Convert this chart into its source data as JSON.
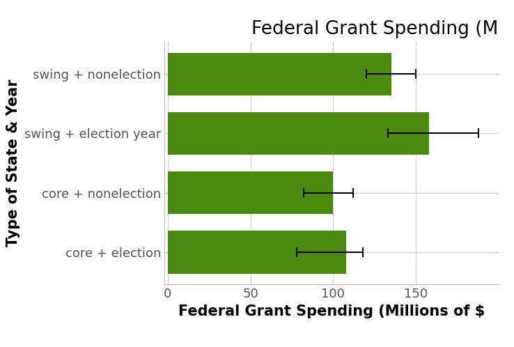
{
  "categories": [
    "core + election",
    "core + nonelection",
    "swing + election year",
    "swing + nonelection"
  ],
  "bar_values": [
    108,
    100,
    158,
    135
  ],
  "error_centers": [
    90,
    90,
    143,
    130
  ],
  "error_lower_delta": [
    12,
    8,
    10,
    10
  ],
  "error_upper_delta": [
    28,
    22,
    45,
    20
  ],
  "bar_color": "#4a8b0f",
  "error_color": "#000000",
  "title": "Federal Grant Spending (M",
  "xlabel": "Federal Grant Spending (Millions of $",
  "ylabel": "Type of State & Year",
  "xlim": [
    -2,
    200
  ],
  "xticks": [
    0,
    50,
    100,
    150
  ],
  "background_color": "#ffffff",
  "grid_color": "#cccccc",
  "title_fontsize": 19,
  "label_fontsize": 15,
  "tick_fontsize": 13,
  "ylabel_fontsize": 15,
  "bar_height": 0.72
}
